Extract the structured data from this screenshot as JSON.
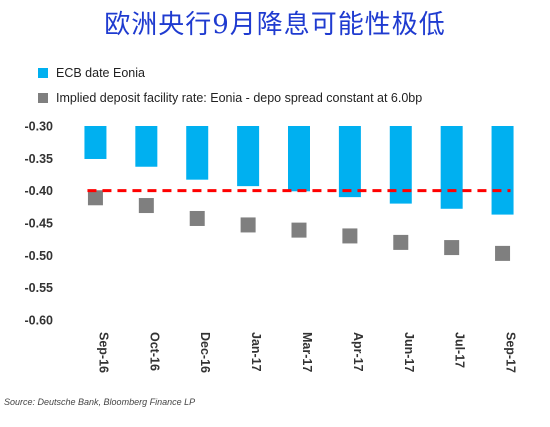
{
  "chart_data": {
    "type": "bar",
    "title": "欧洲央行9月降息可能性极低",
    "categories": [
      "Sep-16",
      "Oct-16",
      "Dec-16",
      "Jan-17",
      "Mar-17",
      "Apr-17",
      "Jun-17",
      "Jul-17",
      "Sep-17"
    ],
    "series": [
      {
        "name": "ECB date Eonia",
        "kind": "bar",
        "color": "#00b0f0",
        "values": [
          -0.351,
          -0.363,
          -0.383,
          -0.393,
          -0.401,
          -0.41,
          -0.42,
          -0.428,
          -0.437
        ]
      },
      {
        "name": "Implied deposit facility rate: Eonia - depo spread constant at 6.0bp",
        "kind": "marker",
        "color": "#7f7f7f",
        "values": [
          -0.411,
          -0.423,
          -0.443,
          -0.453,
          -0.461,
          -0.47,
          -0.48,
          -0.488,
          -0.497
        ]
      }
    ],
    "reference_line": {
      "value": -0.4,
      "color": "#ff0000",
      "style": "dashed"
    },
    "yticks": [
      "-0.30",
      "-0.35",
      "-0.40",
      "-0.45",
      "-0.50",
      "-0.55",
      "-0.60"
    ],
    "ylim": [
      -0.6,
      -0.3
    ],
    "xlabel": "",
    "ylabel": "",
    "grid": false,
    "legend_position": "top-left",
    "source": "Source: Deutsche Bank, Bloomberg Finance LP"
  }
}
